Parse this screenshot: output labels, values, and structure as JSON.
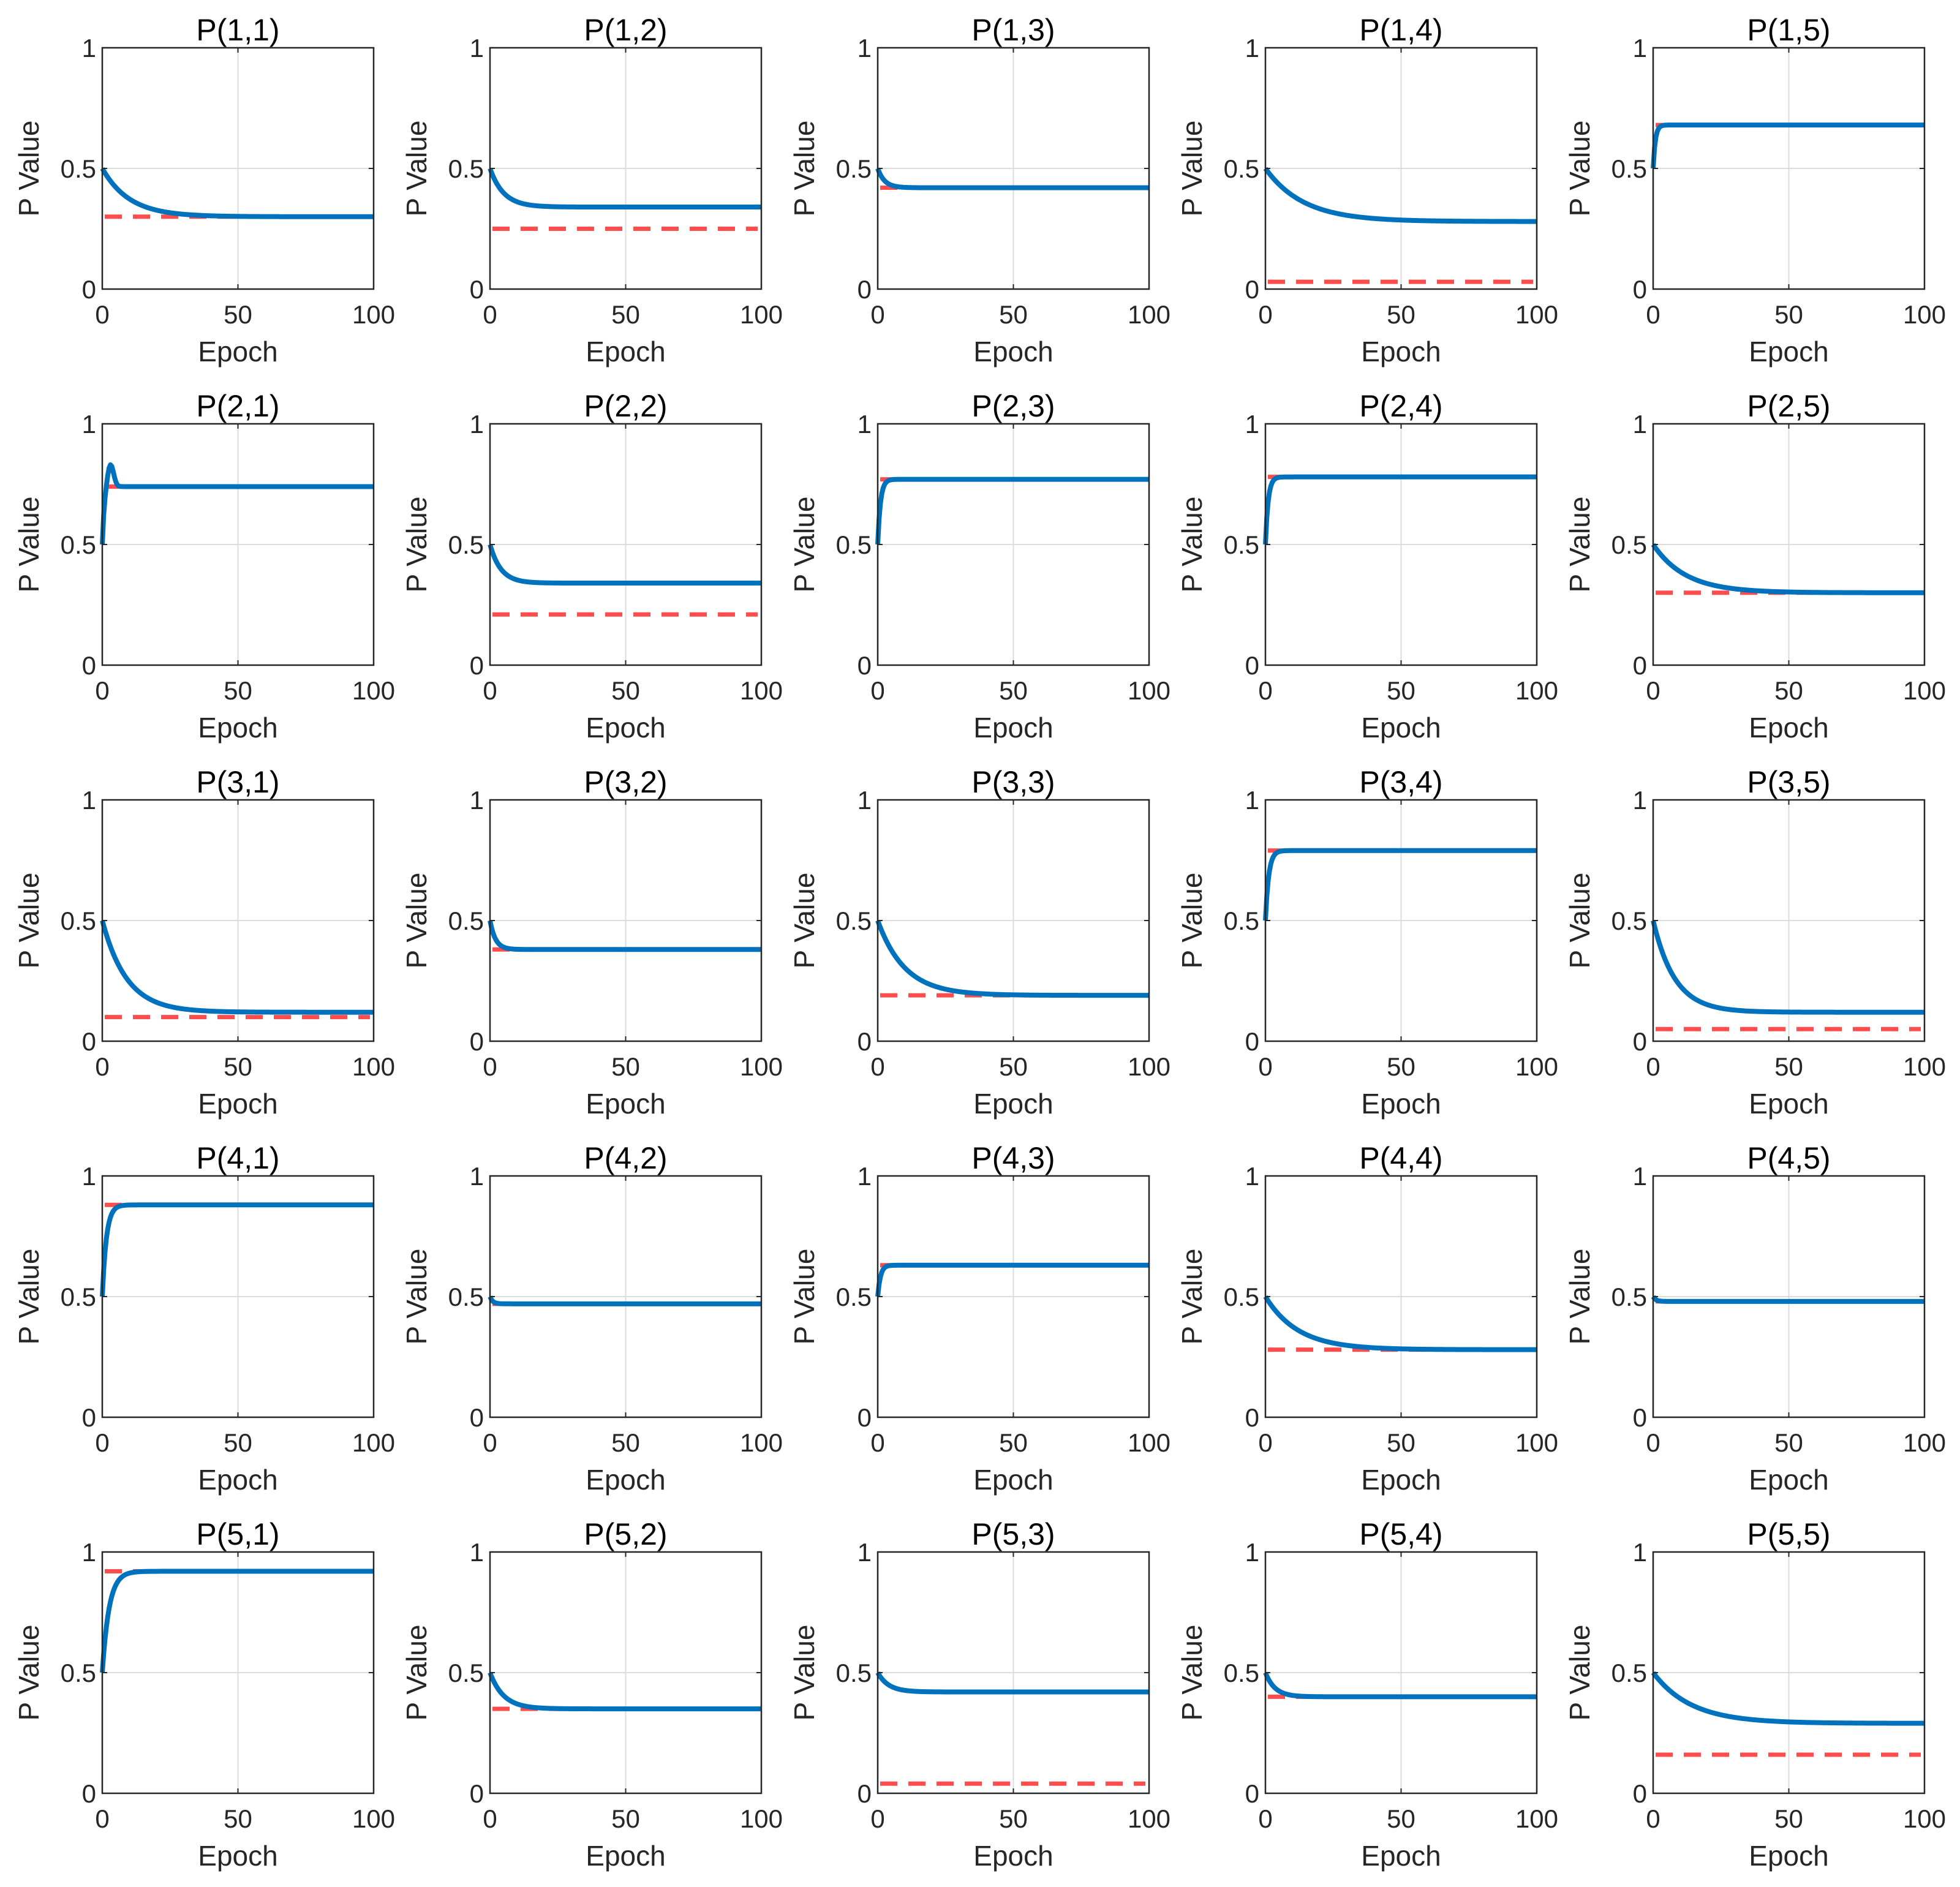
{
  "figure": {
    "rows": 5,
    "cols": 5,
    "colors": {
      "fit": "#0072BD",
      "target": "#FF4D4D",
      "grid": "#DCDCDC",
      "axis": "#262626"
    }
  },
  "chart_data": {
    "type": "line",
    "xlabel": "Epoch",
    "ylabel": "P Value",
    "xlim": [
      0,
      100
    ],
    "ylim": [
      0,
      1
    ],
    "xticks": [
      "0",
      "50",
      "100"
    ],
    "yticks": [
      "0",
      "0.5",
      "1"
    ],
    "grid": true,
    "series_styles": [
      {
        "role": "target",
        "style": "dashed",
        "color": "#FF4D4D"
      },
      {
        "role": "fit",
        "style": "solid",
        "color": "#0072BD"
      }
    ],
    "panels": [
      {
        "title": "P(1,1)",
        "start": 0.5,
        "final": 0.3,
        "target": 0.3,
        "tau": 10
      },
      {
        "title": "P(1,2)",
        "start": 0.5,
        "final": 0.34,
        "target": 0.25,
        "tau": 5
      },
      {
        "title": "P(1,3)",
        "start": 0.5,
        "final": 0.42,
        "target": 0.42,
        "tau": 2.5
      },
      {
        "title": "P(1,4)",
        "start": 0.5,
        "final": 0.28,
        "target": 0.03,
        "tau": 14
      },
      {
        "title": "P(1,5)",
        "start": 0.5,
        "final": 0.68,
        "target": 0.68,
        "tau": 0.8
      },
      {
        "title": "P(2,1)",
        "start": 0.5,
        "final": 0.74,
        "target": 0.74,
        "tau": 0.8,
        "peak": 0.8,
        "peak_at": 3
      },
      {
        "title": "P(2,2)",
        "start": 0.5,
        "final": 0.34,
        "target": 0.21,
        "tau": 4
      },
      {
        "title": "P(2,3)",
        "start": 0.5,
        "final": 0.77,
        "target": 0.77,
        "tau": 1
      },
      {
        "title": "P(2,4)",
        "start": 0.5,
        "final": 0.78,
        "target": 0.78,
        "tau": 1
      },
      {
        "title": "P(2,5)",
        "start": 0.5,
        "final": 0.3,
        "target": 0.3,
        "tau": 12
      },
      {
        "title": "P(3,1)",
        "start": 0.5,
        "final": 0.12,
        "target": 0.1,
        "tau": 9
      },
      {
        "title": "P(3,2)",
        "start": 0.5,
        "final": 0.38,
        "target": 0.38,
        "tau": 2
      },
      {
        "title": "P(3,3)",
        "start": 0.5,
        "final": 0.19,
        "target": 0.19,
        "tau": 10
      },
      {
        "title": "P(3,4)",
        "start": 0.5,
        "final": 0.79,
        "target": 0.79,
        "tau": 1.2
      },
      {
        "title": "P(3,5)",
        "start": 0.5,
        "final": 0.12,
        "target": 0.05,
        "tau": 8
      },
      {
        "title": "P(4,1)",
        "start": 0.5,
        "final": 0.88,
        "target": 0.88,
        "tau": 1.5
      },
      {
        "title": "P(4,2)",
        "start": 0.5,
        "final": 0.47,
        "target": 0.47,
        "tau": 1
      },
      {
        "title": "P(4,3)",
        "start": 0.5,
        "final": 0.63,
        "target": 0.63,
        "tau": 1
      },
      {
        "title": "P(4,4)",
        "start": 0.5,
        "final": 0.28,
        "target": 0.28,
        "tau": 12
      },
      {
        "title": "P(4,5)",
        "start": 0.5,
        "final": 0.48,
        "target": 0.48,
        "tau": 1
      },
      {
        "title": "P(5,1)",
        "start": 0.5,
        "final": 0.92,
        "target": 0.92,
        "tau": 2.5
      },
      {
        "title": "P(5,2)",
        "start": 0.5,
        "final": 0.35,
        "target": 0.35,
        "tau": 5
      },
      {
        "title": "P(5,3)",
        "start": 0.5,
        "final": 0.42,
        "target": 0.04,
        "tau": 4
      },
      {
        "title": "P(5,4)",
        "start": 0.5,
        "final": 0.4,
        "target": 0.4,
        "tau": 3.5
      },
      {
        "title": "P(5,5)",
        "start": 0.5,
        "final": 0.29,
        "target": 0.16,
        "tau": 14
      }
    ]
  }
}
